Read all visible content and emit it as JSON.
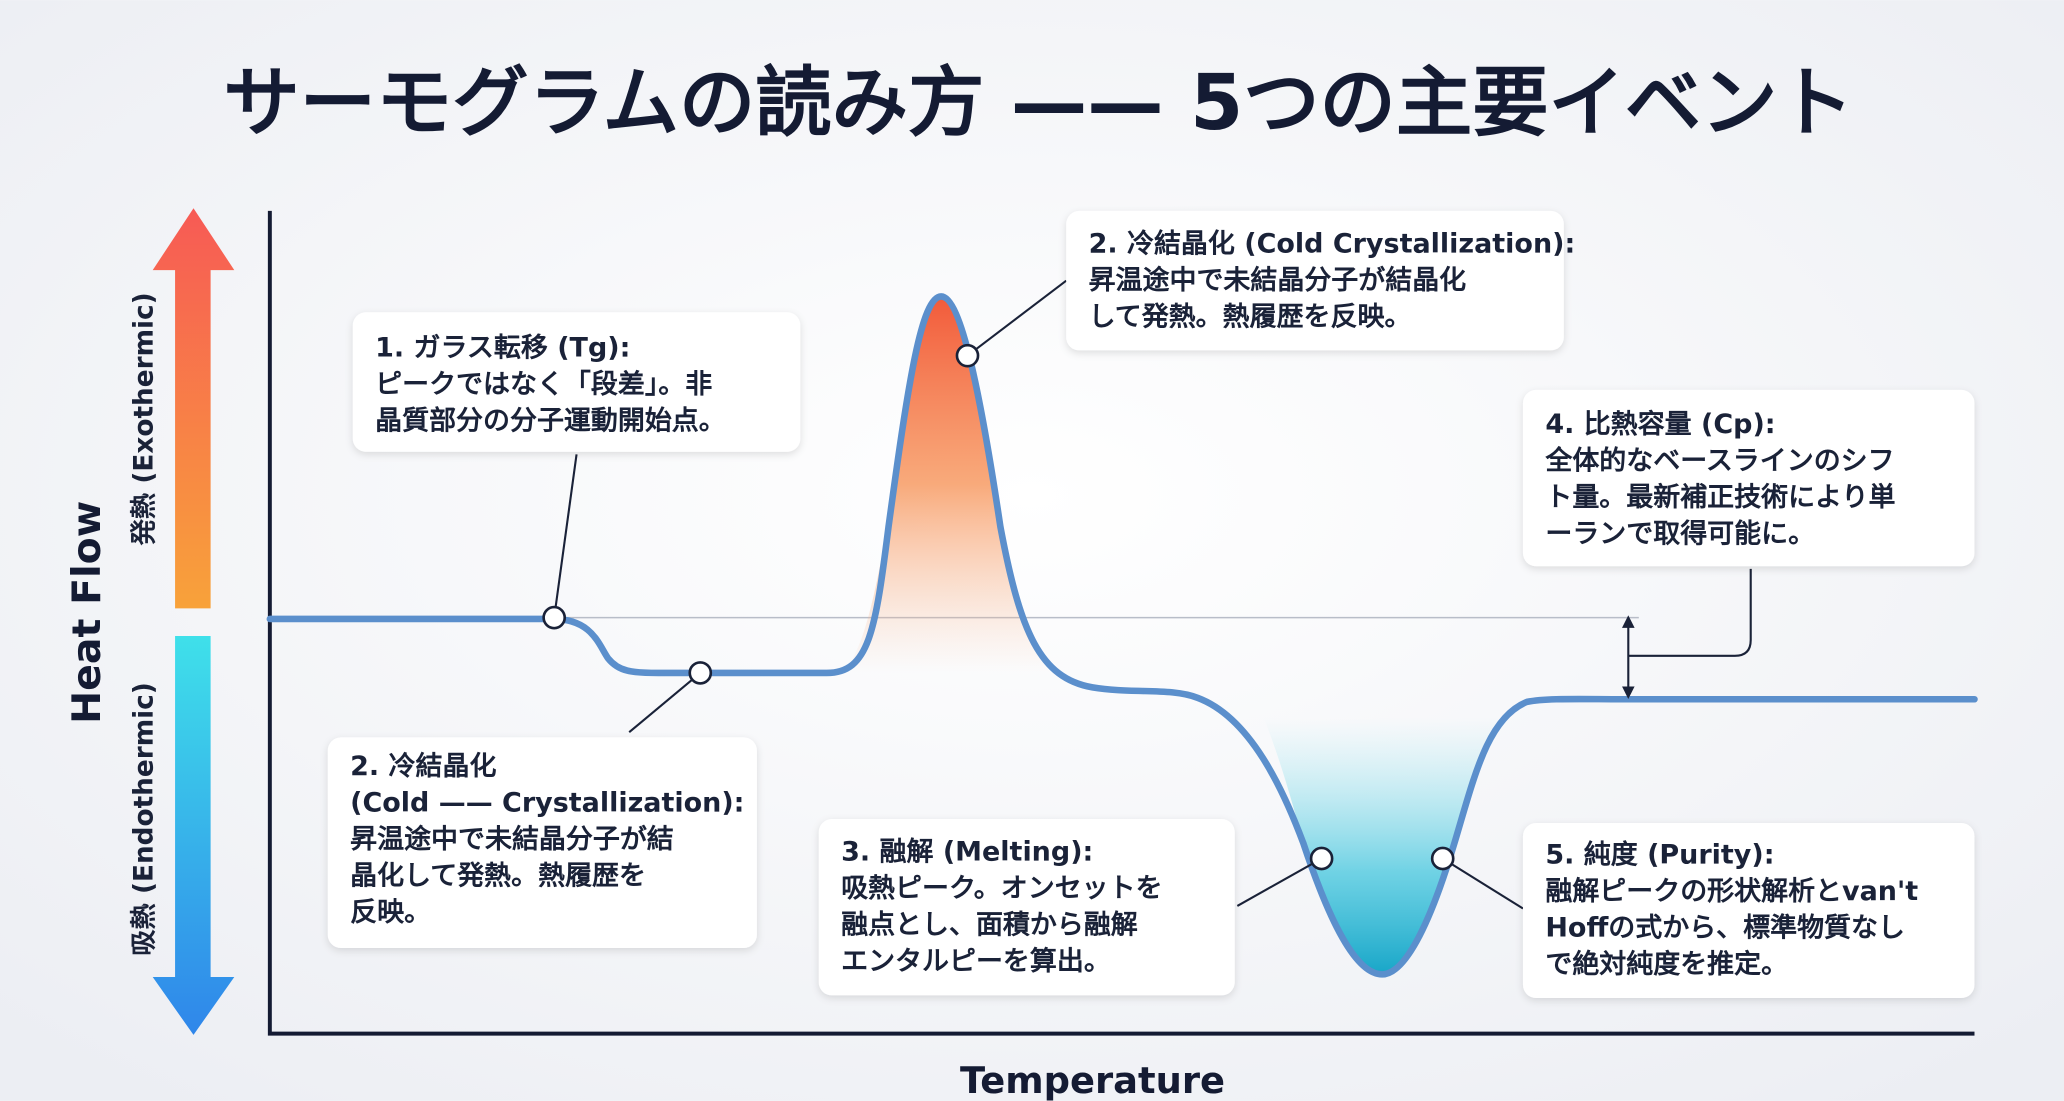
{
  "title": "サーモグラムの読み方 —— 5つの主要イベント",
  "axes": {
    "y_label": "Heat Flow",
    "x_label": "Temperature",
    "exothermic": "発熱 (Exothermic)",
    "endothermic": "吸熱 (Endothermic)"
  },
  "callouts": [
    {
      "lines": [
        "1. ガラス転移 (Tg):",
        "ピークではなく「段差」。非",
        "晶質部分の分子運動開始点。"
      ]
    },
    {
      "lines": [
        "2. 冷結晶化 (Cold Crystallization):",
        "昇温途中で未結晶分子が結晶化",
        "して発熱。熱履歴を反映。"
      ]
    },
    {
      "lines": [
        "4. 比熱容量 (Cp):",
        "全体的なベースラインのシフ",
        "ト量。最新補正技術により単",
        "ーランで取得可能に。"
      ]
    },
    {
      "lines": [
        "2. 冷結晶化",
        "(Cold —— Crystallization):",
        "昇温途中で未結晶分子が結",
        "晶化して発熱。熱履歴を",
        "反映。"
      ]
    },
    {
      "lines": [
        "3. 融解 (Melting):",
        "吸熱ピーク。オンセットを",
        "融点とし、面積から融解",
        "エンタルピーを算出。"
      ]
    },
    {
      "lines": [
        "5. 純度 (Purity):",
        "融解ピークの形状解析とvan't",
        "Hoffの式から、標準物質なし",
        "で絶対純度を推定。"
      ]
    }
  ]
}
